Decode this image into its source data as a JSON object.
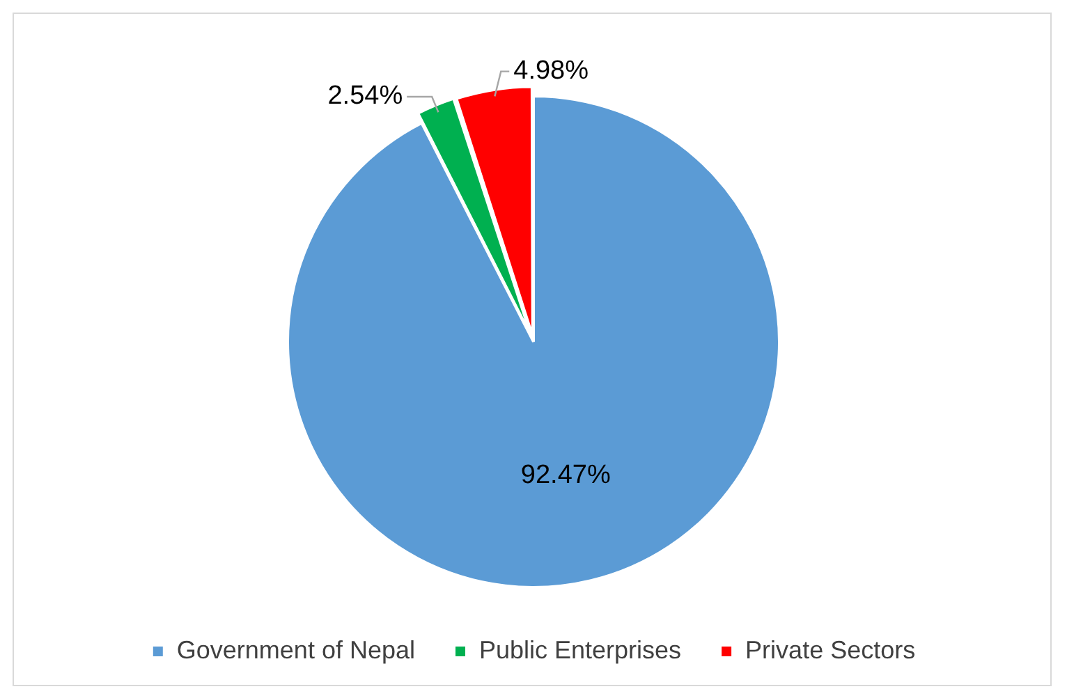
{
  "chart_data": {
    "type": "pie",
    "categories": [
      "Government of Nepal",
      "Public Enterprises",
      "Private Sectors"
    ],
    "values": [
      92.47,
      2.54,
      4.98
    ],
    "colors": [
      "#5b9bd5",
      "#00b050",
      "#ff0000"
    ],
    "value_labels": [
      "92.47%",
      "2.54%",
      "4.98%"
    ],
    "legend": "bottom"
  }
}
